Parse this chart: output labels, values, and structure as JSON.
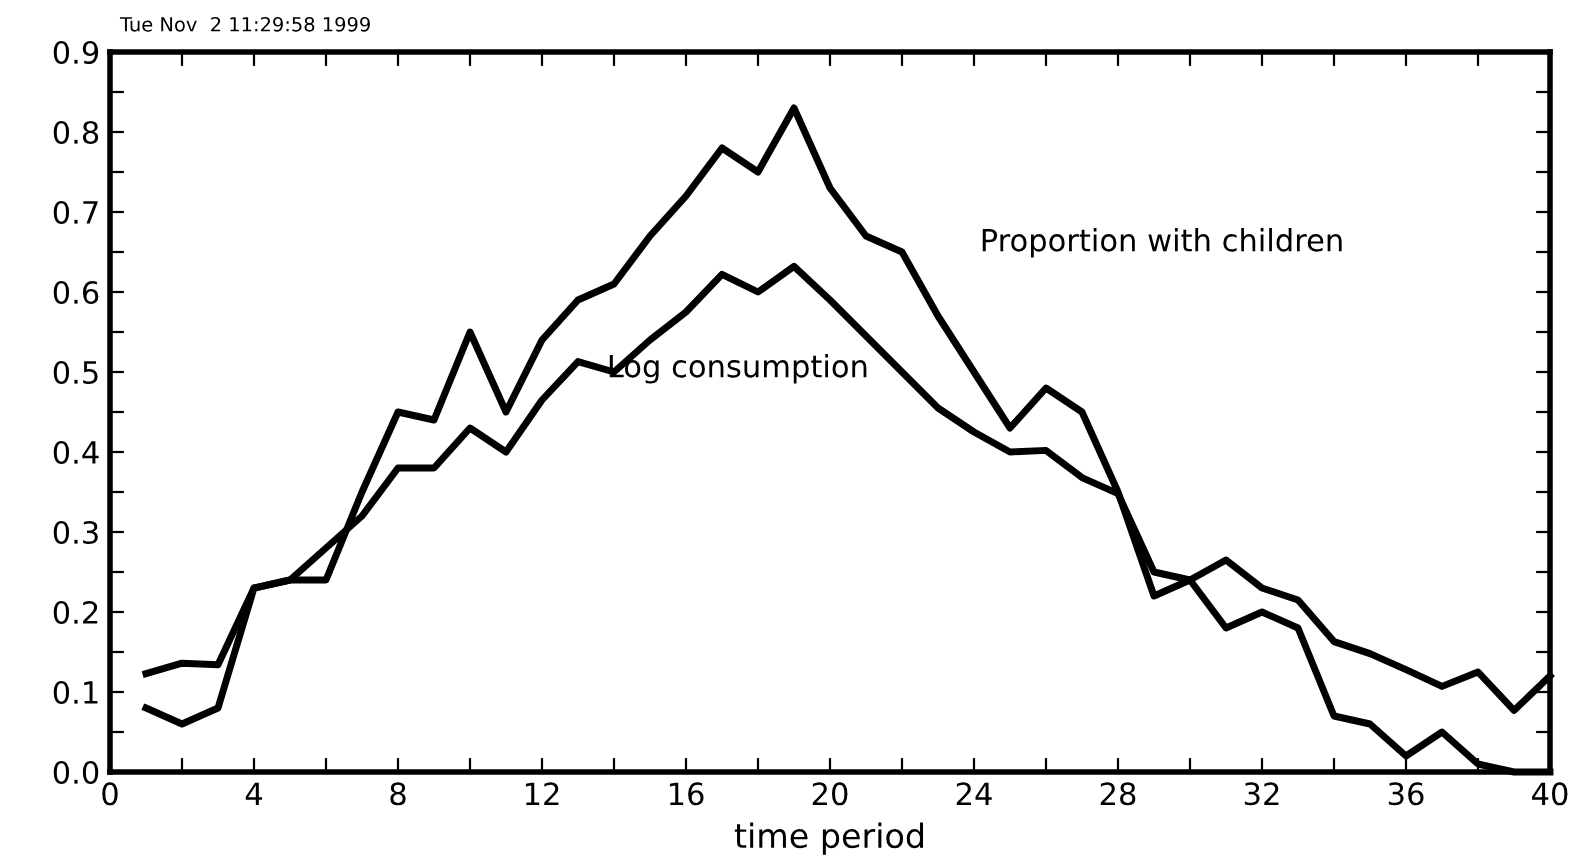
{
  "chart_data": {
    "type": "line",
    "xlabel": "time period",
    "annotations": [
      "Tue Nov  2 11:29:58 1999",
      "Proportion with children",
      "Log consumption"
    ],
    "x": [
      1,
      2,
      3,
      4,
      5,
      6,
      7,
      8,
      9,
      10,
      11,
      12,
      13,
      14,
      15,
      16,
      17,
      18,
      19,
      20,
      21,
      22,
      23,
      24,
      25,
      26,
      27,
      28,
      29,
      30,
      31,
      32,
      33,
      34,
      35,
      36,
      37,
      38,
      39,
      40
    ],
    "series": [
      {
        "color": "#000000",
        "values": [
          0.08,
          0.06,
          0.08,
          0.23,
          0.24,
          0.24,
          0.35,
          0.45,
          0.44,
          0.55,
          0.45,
          0.54,
          0.59,
          0.61,
          0.67,
          0.72,
          0.78,
          0.75,
          0.83,
          0.73,
          0.67,
          0.65,
          0.57,
          0.5,
          0.43,
          0.48,
          0.45,
          0.35,
          0.22,
          0.24,
          0.18,
          0.2,
          0.18,
          0.07,
          0.06,
          0.02,
          0.05,
          0.01,
          0.0,
          0.0
        ]
      },
      {
        "color": "#000000",
        "values": [
          0.123,
          0.136,
          0.134,
          0.23,
          0.24,
          0.28,
          0.32,
          0.38,
          0.38,
          0.43,
          0.4,
          0.465,
          0.513,
          0.5,
          0.54,
          0.575,
          0.622,
          0.6,
          0.632,
          0.59,
          0.545,
          0.5,
          0.455,
          0.425,
          0.4,
          0.402,
          0.368,
          0.348,
          0.25,
          0.24,
          0.265,
          0.23,
          0.215,
          0.163,
          0.148,
          0.128,
          0.107,
          0.125,
          0.077,
          0.12
        ]
      }
    ],
    "xlim": [
      0,
      40
    ],
    "xticks": [
      0,
      {
        "value": 2,
        "label": null
      },
      4,
      {
        "value": 6,
        "label": null
      },
      8,
      {
        "value": 10,
        "label": null
      },
      12,
      {
        "value": 14,
        "label": null
      },
      16,
      {
        "value": 18,
        "label": null
      },
      20,
      {
        "value": 22,
        "label": null
      },
      24,
      {
        "value": 26,
        "label": null
      },
      28,
      {
        "value": 30,
        "label": null
      },
      32,
      {
        "value": 34,
        "label": null
      },
      36,
      {
        "value": 38,
        "label": null
      },
      40
    ],
    "ylim": [
      0,
      0.9
    ],
    "yticks": [
      {
        "value": 0,
        "label": "0.0"
      },
      {
        "value": 0.05,
        "label": null
      },
      {
        "value": 0.1,
        "label": "0.1"
      },
      {
        "value": 0.15,
        "label": null
      },
      {
        "value": 0.2,
        "label": "0.2"
      },
      {
        "value": 0.25,
        "label": null
      },
      {
        "value": 0.3,
        "label": "0.3"
      },
      {
        "value": 0.35,
        "label": null
      },
      {
        "value": 0.4,
        "label": "0.4"
      },
      {
        "value": 0.45,
        "label": null
      },
      {
        "value": 0.5,
        "label": "0.5"
      },
      {
        "value": 0.55,
        "label": null
      },
      {
        "value": 0.6,
        "label": "0.6"
      },
      {
        "value": 0.65,
        "label": null
      },
      {
        "value": 0.7,
        "label": "0.7"
      },
      {
        "value": 0.75,
        "label": null
      },
      {
        "value": 0.8,
        "label": "0.8"
      },
      {
        "value": 0.85,
        "label": null
      },
      {
        "value": 0.9,
        "label": "0.9"
      }
    ],
    "grid": false,
    "marker": "none",
    "line_style": "solid"
  }
}
